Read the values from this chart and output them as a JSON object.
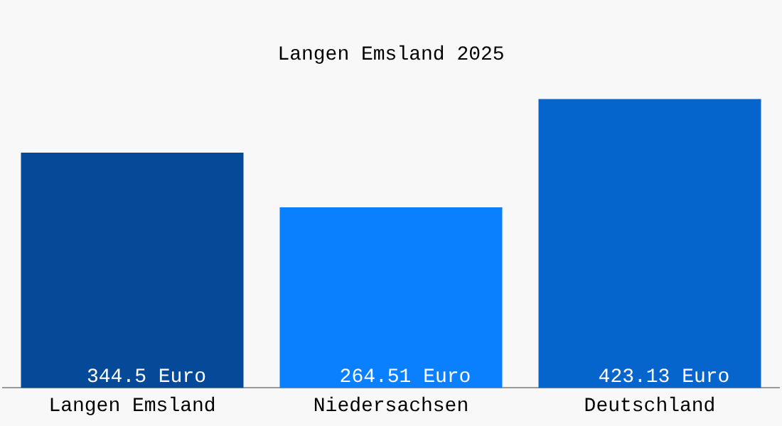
{
  "chart_data": {
    "type": "bar",
    "title": "Langen Emsland 2025",
    "categories": [
      "Langen Emsland",
      "Niedersachsen",
      "Deutschland"
    ],
    "values": [
      344.5,
      264.51,
      423.13
    ],
    "colors": [
      "#044a98",
      "#0a80ff",
      "#0565cc"
    ],
    "value_labels": [
      "344.5 Euro",
      "264.51 Euro",
      "423.13 Euro"
    ],
    "grid": false,
    "legend": false
  }
}
